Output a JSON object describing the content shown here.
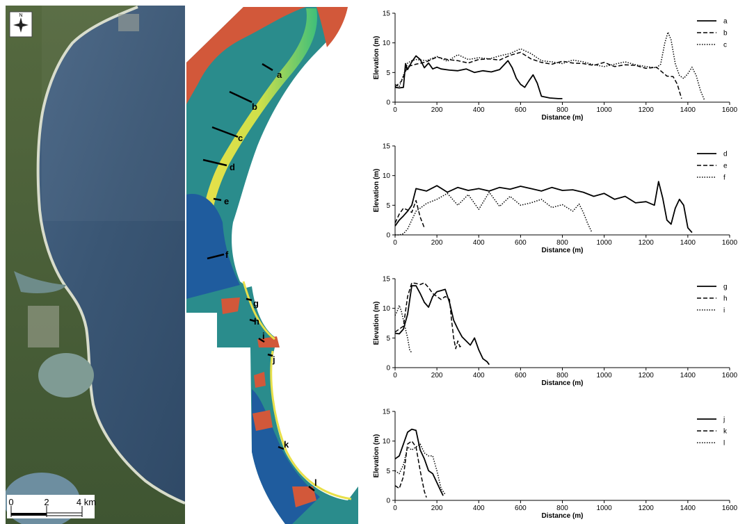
{
  "map": {
    "north_label": "N",
    "scale": {
      "ticks": [
        "0",
        "2",
        "4 km"
      ]
    },
    "transect_labels": [
      "a",
      "b",
      "c",
      "d",
      "e",
      "f",
      "g",
      "h",
      "i",
      "j",
      "k",
      "l"
    ]
  },
  "colors": {
    "ocean": "#3f5a78",
    "land": "#4b6140",
    "beach": "#d9dccd",
    "dem_high": "#d2583a",
    "dem_mid": "#e8e04a",
    "dem_low_green": "#3fbf7a",
    "dem_teal": "#2a8c8c",
    "dem_blue": "#1f5c9e"
  },
  "chart_data": [
    {
      "type": "line",
      "xlabel": "Distance (m)",
      "ylabel": "Elevation (m)",
      "xlim": [
        0,
        1600
      ],
      "ylim": [
        0,
        15
      ],
      "xticks": [
        0,
        200,
        400,
        600,
        800,
        1000,
        1200,
        1400,
        1600
      ],
      "yticks": [
        0,
        5,
        10,
        15
      ],
      "legend": "top-right",
      "series": [
        {
          "name": "a",
          "style": "solid",
          "x": [
            0,
            20,
            40,
            50,
            60,
            80,
            100,
            120,
            140,
            160,
            180,
            200,
            220,
            260,
            300,
            340,
            380,
            420,
            460,
            500,
            540,
            560,
            580,
            600,
            620,
            640,
            660,
            680,
            700,
            740,
            780,
            800
          ],
          "y": [
            2.5,
            2.4,
            2.5,
            6.5,
            5.5,
            6.8,
            7.8,
            7.2,
            5.8,
            6.6,
            5.6,
            5.9,
            5.6,
            5.4,
            5.3,
            5.6,
            5.0,
            5.3,
            5.1,
            5.5,
            7.0,
            5.8,
            4.0,
            3.0,
            2.5,
            3.6,
            4.6,
            3.2,
            1.0,
            0.7,
            0.6,
            0.6
          ]
        },
        {
          "name": "b",
          "style": "dashed",
          "x": [
            0,
            30,
            60,
            100,
            150,
            200,
            250,
            300,
            350,
            400,
            450,
            500,
            550,
            600,
            650,
            700,
            750,
            800,
            850,
            900,
            950,
            1000,
            1050,
            1100,
            1150,
            1200,
            1250,
            1300,
            1330,
            1350,
            1370
          ],
          "y": [
            2.6,
            3.5,
            6.0,
            6.4,
            6.8,
            7.6,
            7.2,
            7.0,
            6.6,
            7.2,
            7.3,
            7.1,
            7.9,
            8.4,
            7.3,
            6.7,
            6.4,
            6.9,
            6.6,
            6.5,
            6.2,
            6.7,
            6.0,
            6.3,
            6.2,
            5.7,
            5.9,
            4.4,
            4.3,
            3.0,
            0.6
          ]
        },
        {
          "name": "c",
          "style": "dotted",
          "x": [
            0,
            20,
            40,
            60,
            80,
            100,
            150,
            200,
            250,
            300,
            350,
            400,
            450,
            500,
            550,
            600,
            650,
            700,
            750,
            800,
            850,
            900,
            950,
            1000,
            1050,
            1100,
            1150,
            1200,
            1250,
            1270,
            1290,
            1305,
            1320,
            1340,
            1360,
            1380,
            1400,
            1420,
            1440,
            1460,
            1480
          ],
          "y": [
            3.0,
            2.6,
            4.5,
            6.6,
            7.0,
            7.2,
            7.0,
            7.7,
            6.9,
            8.0,
            7.2,
            7.5,
            7.3,
            7.8,
            8.2,
            9.0,
            8.2,
            7.0,
            6.8,
            6.5,
            7.1,
            6.8,
            6.3,
            6.0,
            6.4,
            6.8,
            6.3,
            6.0,
            5.8,
            6.4,
            10.0,
            11.8,
            10.5,
            6.5,
            4.5,
            4.0,
            4.8,
            5.9,
            4.5,
            2.0,
            0.3
          ]
        }
      ]
    },
    {
      "type": "line",
      "xlabel": "Distance (m)",
      "ylabel": "Elevation (m)",
      "xlim": [
        0,
        1600
      ],
      "ylim": [
        0,
        15
      ],
      "xticks": [
        0,
        200,
        400,
        600,
        800,
        1000,
        1200,
        1400,
        1600
      ],
      "yticks": [
        0,
        5,
        10,
        15
      ],
      "legend": "top-right",
      "series": [
        {
          "name": "d",
          "style": "solid",
          "x": [
            0,
            20,
            40,
            60,
            80,
            100,
            150,
            200,
            250,
            300,
            350,
            400,
            450,
            500,
            550,
            600,
            650,
            700,
            750,
            800,
            850,
            900,
            950,
            1000,
            1050,
            1100,
            1150,
            1200,
            1240,
            1260,
            1280,
            1300,
            1320,
            1340,
            1360,
            1380,
            1400,
            1420
          ],
          "y": [
            1.5,
            2.5,
            3.2,
            4.0,
            5.0,
            7.8,
            7.4,
            8.3,
            7.2,
            8.0,
            7.5,
            7.8,
            7.4,
            8.0,
            7.7,
            8.2,
            7.8,
            7.4,
            8.0,
            7.5,
            7.6,
            7.2,
            6.5,
            7.0,
            6.0,
            6.5,
            5.4,
            5.6,
            5.0,
            9.0,
            6.2,
            2.5,
            1.8,
            4.5,
            6.0,
            5.0,
            1.2,
            0.4
          ]
        },
        {
          "name": "e",
          "style": "dashed",
          "x": [
            0,
            20,
            40,
            60,
            80,
            100,
            120,
            140
          ],
          "y": [
            2.0,
            3.5,
            4.5,
            4.2,
            3.8,
            5.8,
            3.0,
            1.2
          ]
        },
        {
          "name": "f",
          "style": "dotted",
          "x": [
            0,
            20,
            40,
            60,
            80,
            100,
            120,
            150,
            200,
            250,
            300,
            350,
            400,
            450,
            500,
            550,
            600,
            650,
            700,
            750,
            800,
            850,
            880,
            900,
            920,
            940
          ],
          "y": [
            0.0,
            0.0,
            0.2,
            1.0,
            2.5,
            4.0,
            4.5,
            5.3,
            6.0,
            7.0,
            5.0,
            6.8,
            4.3,
            7.2,
            4.8,
            6.5,
            5.0,
            5.4,
            6.0,
            4.6,
            5.1,
            4.0,
            5.2,
            3.8,
            2.0,
            0.5
          ]
        }
      ]
    },
    {
      "type": "line",
      "xlabel": "Distance (m)",
      "ylabel": "Elevation (m)",
      "xlim": [
        0,
        1600
      ],
      "ylim": [
        0,
        15
      ],
      "xticks": [
        0,
        200,
        400,
        600,
        800,
        1000,
        1200,
        1400,
        1600
      ],
      "yticks": [
        0,
        5,
        10,
        15
      ],
      "legend": "top-right",
      "series": [
        {
          "name": "g",
          "style": "solid",
          "x": [
            0,
            20,
            40,
            60,
            80,
            100,
            120,
            140,
            160,
            180,
            200,
            220,
            240,
            260,
            280,
            300,
            320,
            340,
            360,
            380,
            400,
            420,
            440,
            450
          ],
          "y": [
            5.8,
            5.7,
            6.5,
            9.0,
            13.8,
            13.8,
            12.5,
            11.0,
            10.2,
            12.0,
            12.8,
            13.0,
            13.2,
            11.0,
            8.0,
            6.5,
            5.2,
            4.5,
            3.8,
            5.0,
            3.0,
            1.5,
            1.0,
            0.5
          ]
        },
        {
          "name": "h",
          "style": "dashed",
          "x": [
            0,
            20,
            40,
            60,
            80,
            100,
            120,
            140,
            160,
            180,
            200,
            220,
            240,
            260,
            270,
            280,
            290,
            300,
            310,
            320
          ],
          "y": [
            6.0,
            6.5,
            7.0,
            12.0,
            14.3,
            14.2,
            14.0,
            14.3,
            13.5,
            12.5,
            12.0,
            11.5,
            12.0,
            11.5,
            8.0,
            5.0,
            3.2,
            4.5,
            3.5,
            3.8
          ]
        },
        {
          "name": "i",
          "style": "dotted",
          "x": [
            0,
            10,
            20,
            30,
            40,
            50,
            60,
            70,
            80
          ],
          "y": [
            8.8,
            9.5,
            10.5,
            9.5,
            8.0,
            6.5,
            5.0,
            3.0,
            2.5
          ]
        }
      ]
    },
    {
      "type": "line",
      "xlabel": "Distance (m)",
      "ylabel": "Elevation (m)",
      "xlim": [
        0,
        1600
      ],
      "ylim": [
        0,
        15
      ],
      "xticks": [
        0,
        200,
        400,
        600,
        800,
        1000,
        1200,
        1400,
        1600
      ],
      "yticks": [
        0,
        5,
        10,
        15
      ],
      "legend": "top-right",
      "series": [
        {
          "name": "j",
          "style": "solid",
          "x": [
            0,
            20,
            40,
            60,
            80,
            100,
            120,
            140,
            160,
            180,
            200,
            220,
            230
          ],
          "y": [
            7.0,
            7.5,
            9.5,
            11.5,
            12.0,
            11.8,
            8.5,
            7.0,
            5.0,
            4.5,
            3.0,
            1.5,
            0.8
          ]
        },
        {
          "name": "k",
          "style": "dashed",
          "x": [
            0,
            20,
            40,
            60,
            80,
            100,
            120,
            140,
            150
          ],
          "y": [
            2.5,
            2.0,
            4.0,
            9.5,
            10.0,
            9.0,
            5.0,
            1.5,
            0.5
          ]
        },
        {
          "name": "l",
          "style": "dotted",
          "x": [
            0,
            20,
            40,
            60,
            80,
            100,
            120,
            140,
            160,
            180,
            200,
            220,
            240
          ],
          "y": [
            5.0,
            4.5,
            6.0,
            9.0,
            8.5,
            9.0,
            9.5,
            8.0,
            7.5,
            7.5,
            5.0,
            2.0,
            1.0
          ]
        }
      ]
    }
  ]
}
